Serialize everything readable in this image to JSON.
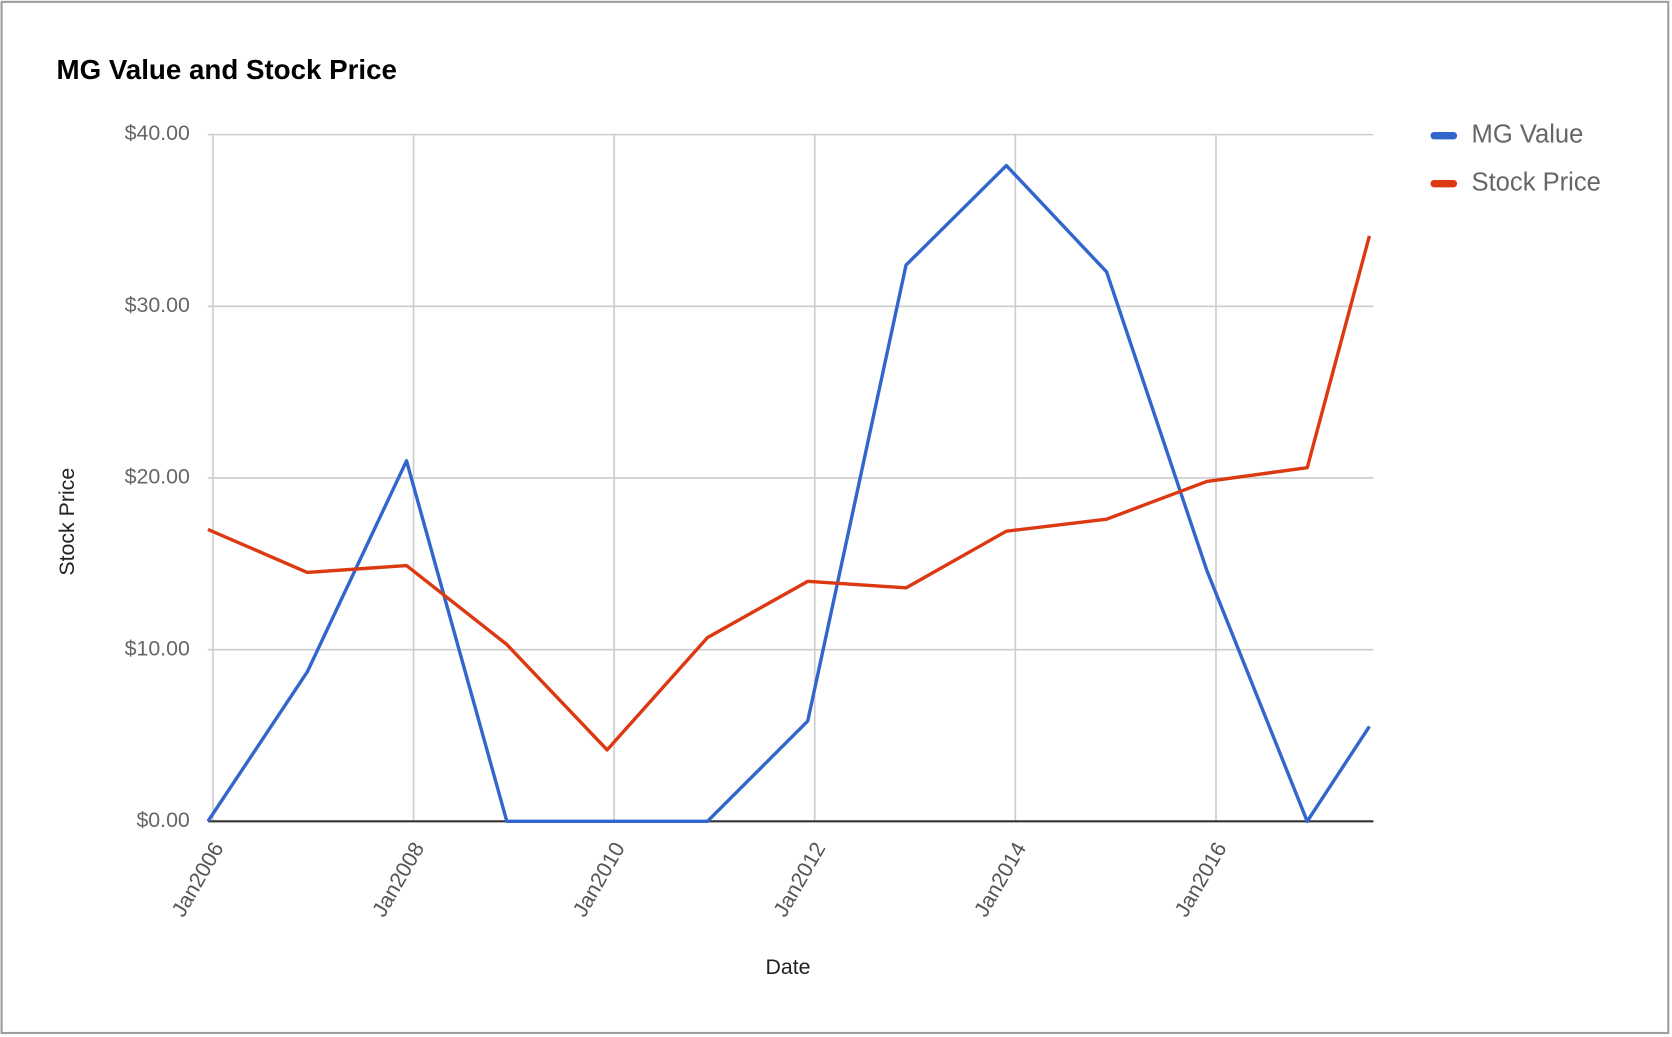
{
  "chart_data": {
    "type": "line",
    "title": "MG Value and Stock Price",
    "x_label": "Date",
    "y_label": "Stock Price",
    "x": [
      2005.95,
      2006.94,
      2007.93,
      2008.93,
      2009.93,
      2010.93,
      2011.93,
      2012.91,
      2013.91,
      2014.91,
      2015.91,
      2016.91,
      2017.53
    ],
    "series": [
      {
        "name": "MG Value",
        "color": "#3366cc",
        "values": [
          0,
          8.7,
          21.0,
          0,
          0,
          0,
          5.84,
          32.4,
          38.2,
          32.0,
          14.6,
          0,
          5.53
        ]
      },
      {
        "name": "Stock Price",
        "color": "#dc3912",
        "values": [
          17.0,
          14.5,
          14.9,
          10.3,
          4.16,
          10.7,
          13.98,
          13.6,
          16.9,
          17.6,
          19.8,
          20.6,
          34.1
        ]
      }
    ],
    "xlim": [
      2005.95,
      2017.57
    ],
    "xticks": [
      {
        "value": 2006,
        "label": "Jan2006"
      },
      {
        "value": 2008,
        "label": "Jan2008"
      },
      {
        "value": 2010,
        "label": "Jan2010"
      },
      {
        "value": 2012,
        "label": "Jan2012"
      },
      {
        "value": 2014,
        "label": "Jan2014"
      },
      {
        "value": 2016,
        "label": "Jan2016"
      }
    ],
    "ylim": [
      0,
      40
    ],
    "yticks": [
      {
        "value": 0,
        "label": "$0.00"
      },
      {
        "value": 10,
        "label": "$10.00"
      },
      {
        "value": 20,
        "label": "$20.00"
      },
      {
        "value": 30,
        "label": "$30.00"
      },
      {
        "value": 40,
        "label": "$40.00"
      }
    ],
    "grid": true,
    "legend": "right"
  }
}
